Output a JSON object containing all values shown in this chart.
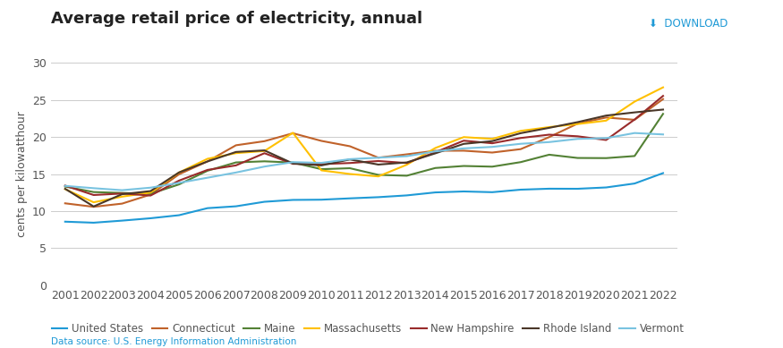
{
  "title": "Average retail price of electricity, annual",
  "ylabel": "cents per kilowatthour",
  "download_text": "⬇  DOWNLOAD",
  "source_text": "Data source: U.S. Energy Information Administration",
  "years": [
    2001,
    2002,
    2003,
    2004,
    2005,
    2006,
    2007,
    2008,
    2009,
    2010,
    2011,
    2012,
    2013,
    2014,
    2015,
    2016,
    2017,
    2018,
    2019,
    2020,
    2021,
    2022
  ],
  "series": {
    "United States": {
      "color": "#1f9ad6",
      "data": [
        8.58,
        8.44,
        8.72,
        9.04,
        9.45,
        10.4,
        10.65,
        11.26,
        11.51,
        11.54,
        11.72,
        11.88,
        12.12,
        12.52,
        12.65,
        12.55,
        12.89,
        13.02,
        13.01,
        13.19,
        13.72,
        15.12
      ]
    },
    "Connecticut": {
      "color": "#c0622a",
      "data": [
        11.05,
        10.58,
        11.01,
        12.23,
        14.96,
        16.7,
        18.87,
        19.42,
        20.49,
        19.46,
        18.74,
        17.2,
        17.65,
        18.13,
        18.14,
        17.89,
        18.35,
        19.97,
        21.79,
        22.61,
        22.3,
        25.09
      ]
    },
    "Maine": {
      "color": "#538135",
      "data": [
        13.31,
        12.57,
        12.45,
        12.33,
        13.6,
        15.44,
        16.56,
        16.71,
        16.54,
        15.65,
        15.78,
        14.88,
        14.77,
        15.81,
        16.08,
        15.99,
        16.6,
        17.6,
        17.16,
        17.14,
        17.42,
        23.1
      ]
    },
    "Massachusetts": {
      "color": "#ffc000",
      "data": [
        12.96,
        11.19,
        11.95,
        12.5,
        15.2,
        17.05,
        17.81,
        18.1,
        20.55,
        15.49,
        15.0,
        14.68,
        16.25,
        18.5,
        19.97,
        19.73,
        20.81,
        21.32,
        21.73,
        22.19,
        24.75,
        26.67
      ]
    },
    "New Hampshire": {
      "color": "#992b2b",
      "data": [
        13.44,
        12.17,
        12.37,
        12.1,
        14.11,
        15.55,
        16.16,
        17.8,
        16.37,
        16.33,
        16.48,
        16.75,
        16.48,
        17.93,
        19.49,
        19.14,
        19.85,
        20.3,
        20.08,
        19.58,
        22.34,
        25.52
      ]
    },
    "Rhode Island": {
      "color": "#4a3728",
      "data": [
        13.01,
        10.63,
        12.28,
        12.7,
        15.21,
        16.69,
        17.97,
        18.18,
        16.42,
        16.16,
        16.96,
        16.27,
        16.56,
        17.78,
        19.06,
        19.43,
        20.5,
        21.22,
        21.99,
        22.87,
        23.3,
        23.68
      ]
    },
    "Vermont": {
      "color": "#79c3e0",
      "data": [
        13.4,
        13.09,
        12.82,
        13.16,
        13.81,
        14.5,
        15.2,
        16.0,
        16.6,
        16.5,
        17.0,
        17.2,
        17.4,
        18.05,
        18.45,
        18.65,
        19.07,
        19.3,
        19.73,
        19.83,
        20.52,
        20.33
      ]
    }
  },
  "ylim": [
    0,
    30
  ],
  "yticks": [
    0,
    5,
    10,
    15,
    20,
    25,
    30
  ],
  "bg_color": "#ffffff",
  "plot_bg_color": "#ffffff",
  "grid_color": "#cccccc",
  "top_bar_color": "#1f9ad6",
  "title_fontsize": 13,
  "axis_fontsize": 9,
  "legend_fontsize": 8.5
}
